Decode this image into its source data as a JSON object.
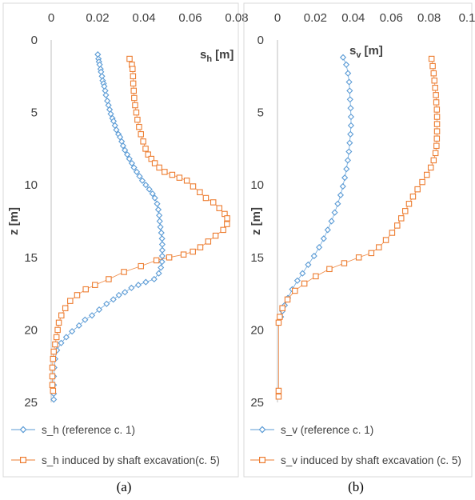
{
  "colors": {
    "reference": "#5B9BD5",
    "induced": "#ED7D31",
    "axis": "#bfbfbf",
    "text": "#404040"
  },
  "chart_data": [
    {
      "type": "scatter",
      "caption": "(a)",
      "quantity_label": {
        "main": "s",
        "sub": "h",
        "unit": "[m]"
      },
      "ylabel_text": "z [m]",
      "xlim": [
        0,
        0.08
      ],
      "ylim": [
        0,
        25
      ],
      "y_inverted": true,
      "x_axis_position": "top",
      "x_ticks": [
        "0",
        "0.02",
        "0.04",
        "0.06",
        "0.08"
      ],
      "y_ticks": [
        "0",
        "5",
        "10",
        "15",
        "20",
        "25"
      ],
      "grid": false,
      "legend_position": "bottom",
      "series": [
        {
          "name": "s_h (reference c. 1)",
          "marker": "diamond",
          "color": "#5B9BD5",
          "points": [
            [
              0.0201,
              1.0
            ],
            [
              0.0204,
              1.3
            ],
            [
              0.0206,
              1.5
            ],
            [
              0.0209,
              1.7
            ],
            [
              0.0213,
              2.0
            ],
            [
              0.0215,
              2.2
            ],
            [
              0.0219,
              2.5
            ],
            [
              0.0222,
              2.8
            ],
            [
              0.0226,
              3.0
            ],
            [
              0.0229,
              3.2
            ],
            [
              0.0233,
              3.5
            ],
            [
              0.0236,
              3.8
            ],
            [
              0.0242,
              4.2
            ],
            [
              0.0247,
              4.5
            ],
            [
              0.0252,
              4.8
            ],
            [
              0.0257,
              5.1
            ],
            [
              0.0264,
              5.4
            ],
            [
              0.0269,
              5.6
            ],
            [
              0.0275,
              5.9
            ],
            [
              0.0281,
              6.2
            ],
            [
              0.029,
              6.5
            ],
            [
              0.0297,
              6.7
            ],
            [
              0.0304,
              7.0
            ],
            [
              0.031,
              7.3
            ],
            [
              0.0318,
              7.6
            ],
            [
              0.0328,
              7.9
            ],
            [
              0.0337,
              8.2
            ],
            [
              0.0348,
              8.5
            ],
            [
              0.0357,
              8.8
            ],
            [
              0.0369,
              9.1
            ],
            [
              0.0381,
              9.4
            ],
            [
              0.0393,
              9.7
            ],
            [
              0.0408,
              10.0
            ],
            [
              0.0423,
              10.3
            ],
            [
              0.0437,
              10.6
            ],
            [
              0.0447,
              10.9
            ],
            [
              0.0457,
              11.3
            ],
            [
              0.0462,
              11.7
            ],
            [
              0.0466,
              12.1
            ],
            [
              0.0468,
              12.5
            ],
            [
              0.0471,
              12.9
            ],
            [
              0.0475,
              13.3
            ],
            [
              0.0478,
              13.7
            ],
            [
              0.0479,
              14.1
            ],
            [
              0.0479,
              14.5
            ],
            [
              0.0479,
              14.9
            ],
            [
              0.0478,
              15.3
            ],
            [
              0.0473,
              15.7
            ],
            [
              0.0464,
              16.1
            ],
            [
              0.0444,
              16.5
            ],
            [
              0.0408,
              16.7
            ],
            [
              0.0376,
              16.9
            ],
            [
              0.0346,
              17.1
            ],
            [
              0.0318,
              17.4
            ],
            [
              0.0292,
              17.6
            ],
            [
              0.0268,
              17.9
            ],
            [
              0.0239,
              18.2
            ],
            [
              0.0207,
              18.6
            ],
            [
              0.0176,
              19.0
            ],
            [
              0.0146,
              19.3
            ],
            [
              0.012,
              19.7
            ],
            [
              0.009,
              20.1
            ],
            [
              0.0065,
              20.5
            ],
            [
              0.0043,
              20.9
            ],
            [
              0.0025,
              21.4
            ],
            [
              0.0017,
              22.0
            ],
            [
              0.0013,
              22.6
            ],
            [
              0.0011,
              23.2
            ],
            [
              0.0011,
              23.8
            ],
            [
              0.0011,
              24.4
            ],
            [
              0.0011,
              24.8
            ]
          ]
        },
        {
          "name": "s_h induced by shaft excavation(c. 5)",
          "marker": "square",
          "color": "#ED7D31",
          "points": [
            [
              0.0338,
              1.3
            ],
            [
              0.0348,
              1.7
            ],
            [
              0.0351,
              2.0
            ],
            [
              0.0353,
              2.5
            ],
            [
              0.0354,
              3.0
            ],
            [
              0.0356,
              3.5
            ],
            [
              0.0358,
              4.0
            ],
            [
              0.0362,
              4.5
            ],
            [
              0.0367,
              5.0
            ],
            [
              0.0372,
              5.5
            ],
            [
              0.0379,
              6.0
            ],
            [
              0.0387,
              6.5
            ],
            [
              0.0397,
              7.0
            ],
            [
              0.0407,
              7.5
            ],
            [
              0.0418,
              7.9
            ],
            [
              0.0432,
              8.2
            ],
            [
              0.0447,
              8.5
            ],
            [
              0.0466,
              8.8
            ],
            [
              0.0489,
              9.1
            ],
            [
              0.0522,
              9.3
            ],
            [
              0.0553,
              9.5
            ],
            [
              0.0585,
              9.7
            ],
            [
              0.0612,
              10.1
            ],
            [
              0.0641,
              10.5
            ],
            [
              0.0667,
              10.9
            ],
            [
              0.0699,
              11.2
            ],
            [
              0.0725,
              11.6
            ],
            [
              0.0748,
              12.0
            ],
            [
              0.0759,
              12.3
            ],
            [
              0.0758,
              12.7
            ],
            [
              0.0742,
              13.1
            ],
            [
              0.0709,
              13.5
            ],
            [
              0.0677,
              13.9
            ],
            [
              0.0643,
              14.3
            ],
            [
              0.0611,
              14.6
            ],
            [
              0.0571,
              14.8
            ],
            [
              0.0509,
              15.0
            ],
            [
              0.0454,
              15.2
            ],
            [
              0.0387,
              15.6
            ],
            [
              0.0314,
              16.0
            ],
            [
              0.0248,
              16.5
            ],
            [
              0.0189,
              16.9
            ],
            [
              0.0149,
              17.2
            ],
            [
              0.0112,
              17.6
            ],
            [
              0.0082,
              18.0
            ],
            [
              0.0061,
              18.5
            ],
            [
              0.0044,
              19.0
            ],
            [
              0.0033,
              19.5
            ],
            [
              0.0028,
              20.0
            ],
            [
              0.0023,
              20.5
            ],
            [
              0.0017,
              21.0
            ],
            [
              0.0011,
              21.5
            ],
            [
              0.0008,
              22.0
            ],
            [
              0.0005,
              22.6
            ],
            [
              0.0005,
              23.2
            ],
            [
              0.0005,
              23.8
            ],
            [
              0.0008,
              24.2
            ]
          ]
        }
      ]
    },
    {
      "type": "scatter",
      "caption": "(b)",
      "quantity_label": {
        "main": "s",
        "sub": "v",
        "unit": "[m]"
      },
      "ylabel_text": "z [m]",
      "xlim": [
        0,
        0.1
      ],
      "ylim": [
        0,
        25
      ],
      "y_inverted": true,
      "x_axis_position": "top",
      "x_ticks": [
        "0",
        "0.02",
        "0.04",
        "0.06",
        "0.08",
        "0.1"
      ],
      "y_ticks": [
        "0",
        "5",
        "10",
        "15",
        "20",
        "25"
      ],
      "grid": false,
      "legend_position": "bottom",
      "series": [
        {
          "name": "s_v (reference c. 1)",
          "marker": "diamond",
          "color": "#5B9BD5",
          "points": [
            [
              0.0346,
              1.2
            ],
            [
              0.0363,
              1.7
            ],
            [
              0.0372,
              2.3
            ],
            [
              0.0378,
              2.9
            ],
            [
              0.0381,
              3.5
            ],
            [
              0.0383,
              4.1
            ],
            [
              0.0386,
              4.7
            ],
            [
              0.0388,
              5.3
            ],
            [
              0.0388,
              5.9
            ],
            [
              0.0385,
              6.5
            ],
            [
              0.0381,
              7.1
            ],
            [
              0.0377,
              7.7
            ],
            [
              0.0371,
              8.3
            ],
            [
              0.0364,
              8.9
            ],
            [
              0.0355,
              9.5
            ],
            [
              0.0345,
              10.1
            ],
            [
              0.0333,
              10.7
            ],
            [
              0.0318,
              11.3
            ],
            [
              0.0302,
              11.9
            ],
            [
              0.0285,
              12.5
            ],
            [
              0.0265,
              13.1
            ],
            [
              0.0244,
              13.7
            ],
            [
              0.022,
              14.3
            ],
            [
              0.0193,
              14.9
            ],
            [
              0.0162,
              15.5
            ],
            [
              0.0132,
              16.1
            ],
            [
              0.0105,
              16.6
            ],
            [
              0.0078,
              17.2
            ],
            [
              0.0055,
              17.8
            ],
            [
              0.0038,
              18.3
            ],
            [
              0.0026,
              18.7
            ],
            [
              0.0018,
              19.1
            ]
          ]
        },
        {
          "name": "s_v induced by shaft excavation (c. 5)",
          "marker": "square",
          "color": "#ED7D31",
          "points": [
            [
              0.0813,
              1.3
            ],
            [
              0.0819,
              1.8
            ],
            [
              0.0824,
              2.3
            ],
            [
              0.0828,
              2.8
            ],
            [
              0.0832,
              3.3
            ],
            [
              0.0836,
              3.8
            ],
            [
              0.0838,
              4.3
            ],
            [
              0.0841,
              4.8
            ],
            [
              0.0842,
              5.3
            ],
            [
              0.0842,
              5.8
            ],
            [
              0.0842,
              6.3
            ],
            [
              0.0841,
              6.8
            ],
            [
              0.0839,
              7.3
            ],
            [
              0.0834,
              7.8
            ],
            [
              0.0824,
              8.3
            ],
            [
              0.0809,
              8.8
            ],
            [
              0.0788,
              9.3
            ],
            [
              0.0764,
              9.8
            ],
            [
              0.0739,
              10.3
            ],
            [
              0.0715,
              10.8
            ],
            [
              0.0694,
              11.3
            ],
            [
              0.0674,
              11.8
            ],
            [
              0.0653,
              12.3
            ],
            [
              0.0632,
              12.8
            ],
            [
              0.0605,
              13.3
            ],
            [
              0.0572,
              13.8
            ],
            [
              0.0535,
              14.3
            ],
            [
              0.0495,
              14.7
            ],
            [
              0.0429,
              15.0
            ],
            [
              0.0352,
              15.4
            ],
            [
              0.0274,
              15.8
            ],
            [
              0.0202,
              16.3
            ],
            [
              0.0142,
              16.8
            ],
            [
              0.0092,
              17.3
            ],
            [
              0.0053,
              17.9
            ],
            [
              0.0026,
              18.5
            ],
            [
              0.0012,
              19.1
            ],
            [
              0.0006,
              19.5
            ],
            [
              0.0006,
              24.2
            ],
            [
              0.0006,
              24.6
            ]
          ]
        }
      ]
    }
  ]
}
